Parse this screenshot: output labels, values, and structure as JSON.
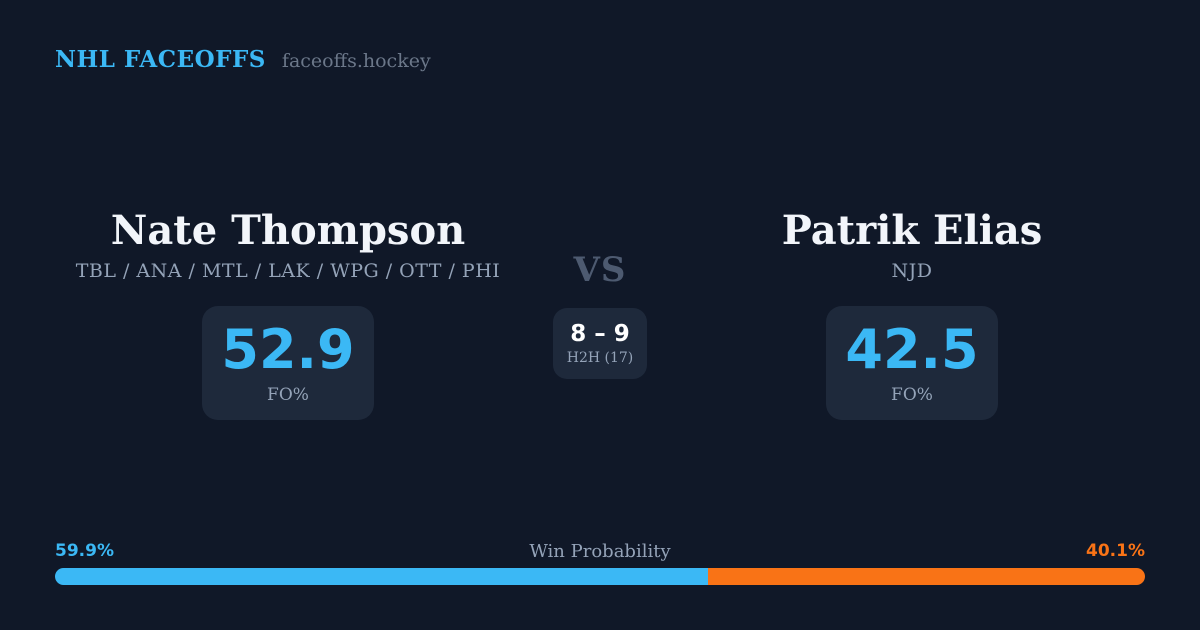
{
  "brand": {
    "title": "NHL FACEOFFS",
    "domain": "faceoffs.hockey"
  },
  "matchup": {
    "vs_label": "VS",
    "h2h": {
      "score": "8 – 9",
      "label": "H2H (17)"
    },
    "players": [
      {
        "name": "Nate Thompson",
        "teams": "TBL / ANA / MTL / LAK / WPG / OTT / PHI",
        "stat_value": "52.9",
        "stat_label": "FO%"
      },
      {
        "name": "Patrik Elias",
        "teams": "NJD",
        "stat_value": "42.5",
        "stat_label": "FO%"
      }
    ]
  },
  "win_probability": {
    "title": "Win Probability",
    "left_label": "59.9%",
    "right_label": "40.1%",
    "left_pct": 59.9,
    "right_pct": 40.1
  },
  "chart_data": {
    "type": "bar",
    "title": "Win Probability",
    "categories": [
      "Nate Thompson",
      "Patrik Elias"
    ],
    "values": [
      59.9,
      40.1
    ],
    "unit": "%",
    "orientation": "horizontal-stacked"
  },
  "colors": {
    "background": "#101828",
    "card": "#1e293b",
    "accent_blue": "#3bb8f5",
    "accent_orange": "#f97316",
    "heading": "#f2f5fa",
    "muted": "#94a3b8",
    "vs_color": "#4d5a70",
    "domain_text": "#6b7789"
  }
}
